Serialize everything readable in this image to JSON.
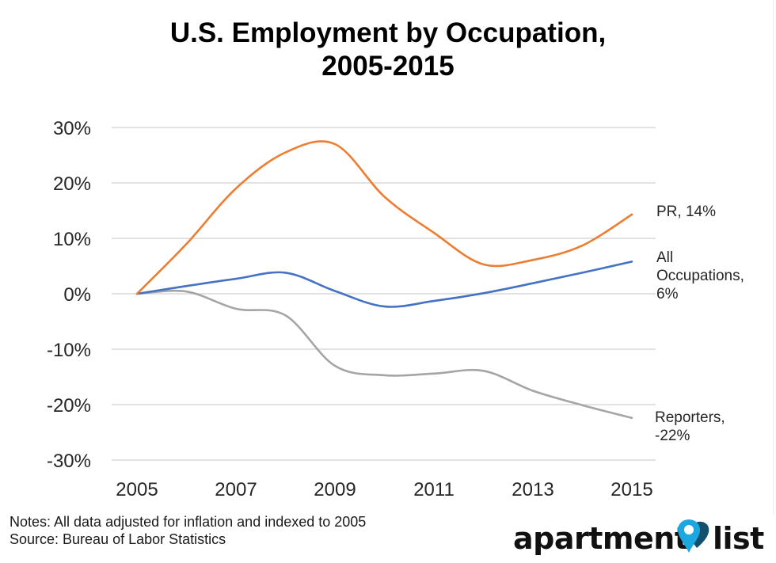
{
  "title_line1": "U.S. Employment by Occupation,",
  "title_line2": "2005-2015",
  "chart_data": {
    "type": "line",
    "title": "U.S. Employment by Occupation, 2005-2015",
    "xlabel": "",
    "ylabel": "",
    "x": [
      2005,
      2006,
      2007,
      2008,
      2009,
      2010,
      2011,
      2012,
      2013,
      2014,
      2015
    ],
    "xticks": [
      2005,
      2007,
      2009,
      2011,
      2013,
      2015
    ],
    "xtick_labels": [
      "2005",
      "2007",
      "2009",
      "2011",
      "2013",
      "2015"
    ],
    "ylim": [
      -30,
      30
    ],
    "yticks": [
      30,
      20,
      10,
      0,
      -10,
      -20,
      -30
    ],
    "ytick_labels": [
      "30%",
      "20%",
      "10%",
      "0%",
      "-10%",
      "-20%",
      "-30%"
    ],
    "grid": true,
    "smooth": true,
    "series": [
      {
        "name": "PR",
        "color": "#ed7d31",
        "values": [
          0,
          9.0,
          19.0,
          25.5,
          27.0,
          17.5,
          11.0,
          5.3,
          6.1,
          8.7,
          14.3
        ]
      },
      {
        "name": "All Occupations",
        "color": "#4472c4",
        "values": [
          0,
          1.4,
          2.7,
          3.8,
          0.5,
          -2.3,
          -1.3,
          0.1,
          1.9,
          3.8,
          5.8
        ]
      },
      {
        "name": "Reporters",
        "color": "#a5a5a5",
        "values": [
          0,
          0.4,
          -2.7,
          -3.9,
          -13.0,
          -14.7,
          -14.4,
          -13.9,
          -17.5,
          -20.1,
          -22.4
        ]
      }
    ],
    "annotations": [
      {
        "series": "PR",
        "lines": [
          "PR, 14%"
        ]
      },
      {
        "series": "All Occupations",
        "lines": [
          "All",
          "Occupations,",
          "6%"
        ]
      },
      {
        "series": "Reporters",
        "lines": [
          "Reporters,",
          "-22%"
        ]
      }
    ]
  },
  "notes": "Notes: All data adjusted for inflation and indexed to 2005",
  "source": "Source: Bureau of Labor Statistics",
  "logo": {
    "word1": "apartment",
    "word2": "list",
    "pin_color": "#1ba8e0",
    "heart_color": "#14506e"
  }
}
